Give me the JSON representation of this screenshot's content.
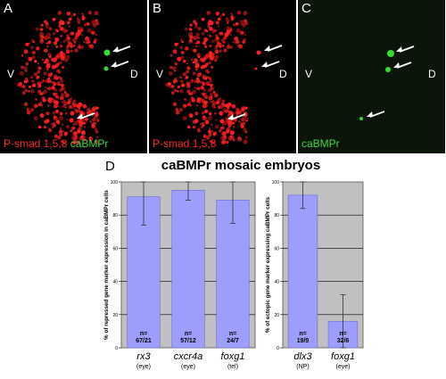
{
  "panels": [
    {
      "letter": "A",
      "v": "V",
      "d": "D",
      "caption_red": "P-smad 1,5,8",
      "caption_green": "caBMPr"
    },
    {
      "letter": "B",
      "v": "V",
      "d": "D",
      "caption_red": "P-smad 1,5,8",
      "caption_green": ""
    },
    {
      "letter": "C",
      "v": "V",
      "d": "D",
      "caption_red": "",
      "caption_green": "caBMPr"
    }
  ],
  "figure_d": {
    "letter": "D",
    "title": "caBMPr mosaic embryos"
  },
  "colors": {
    "bar": "#9d9dfb",
    "plot_bg": "#c0c0c0",
    "red_signal": "#ff2020",
    "green_signal": "#33dd33"
  },
  "chart_data": [
    {
      "type": "bar",
      "ylabel": "% of repressed gene marker expression in caBMPr cells",
      "ylim": [
        0,
        100
      ],
      "yticks": [
        0,
        20,
        40,
        60,
        80,
        100
      ],
      "grid": true,
      "categories": [
        "rx3",
        "cxcr4a",
        "foxg1"
      ],
      "sublabels": [
        "(eye)",
        "(eye)",
        "(tel)"
      ],
      "values": [
        91,
        95,
        89
      ],
      "errors": [
        17,
        6,
        14
      ],
      "n_labels": [
        "n=\n67/21",
        "n=\n57/12",
        "n=\n24/7"
      ]
    },
    {
      "type": "bar",
      "ylabel": "% of ectopic gene marker expressing caBMPr cells",
      "ylim": [
        0,
        100
      ],
      "yticks": [
        0,
        20,
        40,
        60,
        80,
        100
      ],
      "grid": true,
      "categories": [
        "dlx3",
        "foxg1"
      ],
      "sublabels": [
        "(NP)",
        "(eye)"
      ],
      "values": [
        92,
        16
      ],
      "errors": [
        8,
        16
      ],
      "n_labels": [
        "n=\n19/9",
        "n=\n32/6"
      ]
    }
  ]
}
